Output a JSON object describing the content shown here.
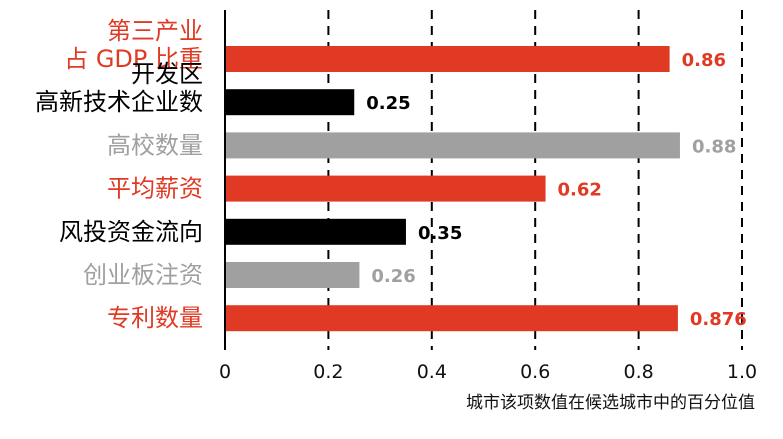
{
  "chart_data": {
    "type": "bar",
    "orientation": "horizontal",
    "title": "",
    "categories": [
      [
        "第三产业",
        "占 GDP 比重"
      ],
      [
        "开发区",
        "高新技术企业数"
      ],
      [
        "高校数量"
      ],
      [
        "平均薪资"
      ],
      [
        "风投资金流向"
      ],
      [
        "创业板注资"
      ],
      [
        "专利数量"
      ]
    ],
    "values": [
      0.86,
      0.25,
      0.88,
      0.62,
      0.35,
      0.26,
      0.876
    ],
    "value_labels": [
      "0.86",
      "0.25",
      "0.88",
      "0.62",
      "0.35",
      "0.26",
      "0.876"
    ],
    "bar_colors": [
      "#e03a24",
      "#000000",
      "#a0a0a0",
      "#e03a24",
      "#000000",
      "#a0a0a0",
      "#e03a24"
    ],
    "label_colors": [
      "#e03a24",
      "#000000",
      "#a0a0a0",
      "#e03a24",
      "#000000",
      "#a0a0a0",
      "#e03a24"
    ],
    "xlabel": "城市该项数值在候选城市中的百分位值",
    "ylabel": "",
    "xlim": [
      0,
      1.0
    ],
    "xticks": [
      0,
      0.2,
      0.4,
      0.6,
      0.8,
      1.0
    ],
    "xtick_labels": [
      "0",
      "0.2",
      "0.4",
      "0.6",
      "0.8",
      "1.0"
    ],
    "grid": "vertical-dashed"
  }
}
